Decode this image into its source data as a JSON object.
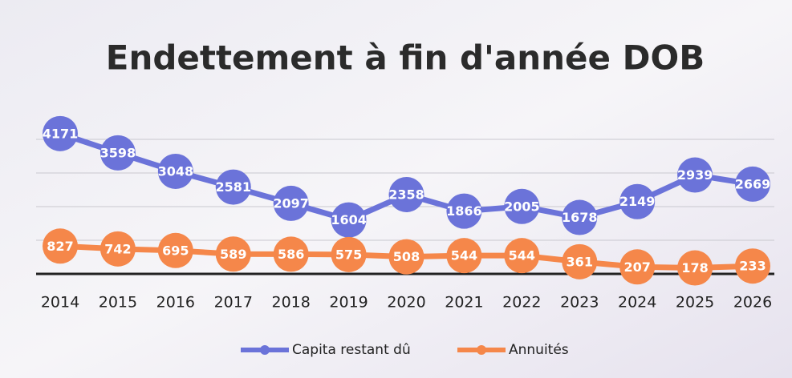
{
  "chart_data": {
    "type": "line",
    "title": "Endettement à fin d'année DOB",
    "categories": [
      "2014",
      "2015",
      "2016",
      "2017",
      "2018",
      "2019",
      "2020",
      "2021",
      "2022",
      "2023",
      "2024",
      "2025",
      "2026"
    ],
    "series": [
      {
        "name": "Capita restant dû",
        "color": "#6b73d9",
        "values": [
          4171,
          3598,
          3048,
          2581,
          2097,
          1604,
          2358,
          1866,
          2005,
          1678,
          2149,
          2939,
          2669
        ]
      },
      {
        "name": "Annuités",
        "color": "#f5874a",
        "values": [
          827,
          742,
          695,
          589,
          586,
          575,
          508,
          544,
          544,
          361,
          207,
          178,
          233
        ]
      }
    ],
    "ylim": [
      0,
      4500
    ],
    "yticks": [
      0,
      1000,
      2000,
      3000,
      4000
    ],
    "grid": true,
    "legend": "bottom"
  }
}
